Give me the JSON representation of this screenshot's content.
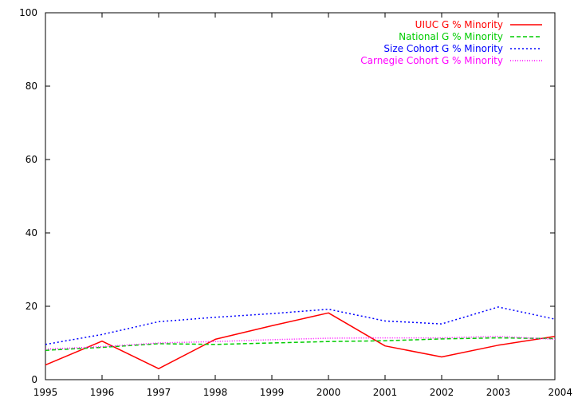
{
  "chart_data": {
    "type": "line",
    "title": "",
    "xlabel": "",
    "ylabel": "",
    "x": [
      1995,
      1996,
      1997,
      1998,
      1999,
      2000,
      2001,
      2002,
      2003,
      2004
    ],
    "xlim": [
      1995,
      2004
    ],
    "ylim": [
      0,
      100
    ],
    "xticks": [
      "1995",
      "1996",
      "1997",
      "1998",
      "1999",
      "2000",
      "2001",
      "2002",
      "2003",
      "2004"
    ],
    "yticks": [
      "0",
      "20",
      "40",
      "60",
      "80",
      "100"
    ],
    "grid": false,
    "legend_position": "top-right",
    "series": [
      {
        "name": "UIUC G % Minority",
        "color": "#ff0000",
        "dash": "solid",
        "values": [
          4.0,
          10.5,
          3.0,
          11.0,
          14.7,
          18.2,
          9.2,
          6.2,
          9.4,
          11.8
        ]
      },
      {
        "name": "National G % Minority",
        "color": "#00cc00",
        "dash": "dashed",
        "values": [
          8.0,
          8.8,
          9.8,
          9.6,
          10.0,
          10.4,
          10.6,
          11.1,
          11.4,
          11.2
        ]
      },
      {
        "name": "Size Cohort G % Minority",
        "color": "#0000ff",
        "dash": "dotted",
        "values": [
          9.6,
          12.3,
          15.8,
          17.0,
          18.0,
          19.2,
          16.0,
          15.2,
          19.8,
          16.5
        ]
      },
      {
        "name": "Carnegie Cohort G % Minority",
        "color": "#ff00ff",
        "dash": "fine-dotted",
        "values": [
          8.3,
          9.0,
          10.0,
          10.4,
          10.9,
          11.3,
          11.4,
          11.4,
          11.8,
          11.0
        ]
      }
    ]
  }
}
